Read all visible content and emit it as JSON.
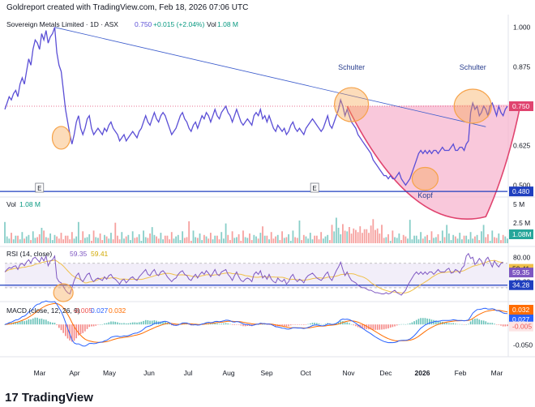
{
  "header": {
    "caption": "Goldreport created with TradingView.com, Feb 18, 2026 07:06 UTC"
  },
  "brand": {
    "name": "TradingView",
    "logo": "17"
  },
  "colors": {
    "price": "#5b4fd6",
    "trend": "#3b5bcc",
    "support": "#1f3fbf",
    "cup_fill": "#f7b6cf",
    "cup_edge": "#e0446f",
    "highlight": "#f6a34a",
    "rsi": "#7e57c2",
    "rsi_ma": "#f0c04a",
    "macd": "#2962ff",
    "signal": "#ff6d00",
    "vol_up": "#26a69a",
    "vol_down": "#ef5350"
  },
  "chart_data": [
    {
      "type": "line",
      "pane": "price",
      "legend": {
        "title": "Sovereign Metals Limited · 1D · ASX",
        "last": "0.750",
        "change": "+0.015 (+2.04%)",
        "vol_label": "Vol",
        "vol_value": "1.08 M"
      },
      "x_axis": {
        "ticks": [
          "Mar",
          "Apr",
          "May",
          "Jun",
          "Jul",
          "Aug",
          "Sep",
          "Oct",
          "Nov",
          "Dec",
          "2026",
          "Feb",
          "Mar"
        ]
      },
      "y_axis": {
        "ticks": [
          "1.000",
          "0.875",
          "0.750",
          "0.625",
          "0.500"
        ],
        "ylim": [
          0.47,
          1.03
        ]
      },
      "series": [
        {
          "values": [
            0.74,
            0.76,
            0.78,
            0.77,
            0.79,
            0.8,
            0.78,
            0.82,
            0.84,
            0.82,
            0.86,
            0.9,
            0.88,
            0.93,
            0.96,
            0.95,
            0.93,
            0.98,
            0.96,
            0.99,
            0.95,
            0.97,
            0.98,
            1.0,
            0.92,
            0.88,
            0.86,
            0.8,
            0.74,
            0.7,
            0.66,
            0.63,
            0.66,
            0.7,
            0.72,
            0.68,
            0.66,
            0.68,
            0.71,
            0.72,
            0.68,
            0.66,
            0.67,
            0.68,
            0.67,
            0.66,
            0.68,
            0.67,
            0.69,
            0.7,
            0.68,
            0.67,
            0.66,
            0.64,
            0.65,
            0.66,
            0.64,
            0.65,
            0.66,
            0.67,
            0.66,
            0.65,
            0.67,
            0.68,
            0.7,
            0.72,
            0.7,
            0.69,
            0.71,
            0.73,
            0.71,
            0.7,
            0.72,
            0.73,
            0.72,
            0.7,
            0.68,
            0.66,
            0.67,
            0.68,
            0.7,
            0.72,
            0.73,
            0.71,
            0.7,
            0.68,
            0.67,
            0.69,
            0.7,
            0.68,
            0.7,
            0.72,
            0.71,
            0.73,
            0.72,
            0.7,
            0.72,
            0.74,
            0.72,
            0.71,
            0.73,
            0.74,
            0.75,
            0.73,
            0.72,
            0.7,
            0.72,
            0.74,
            0.72,
            0.7,
            0.69,
            0.7,
            0.71,
            0.7,
            0.69,
            0.72,
            0.73,
            0.72,
            0.74,
            0.71,
            0.72,
            0.7,
            0.72,
            0.7,
            0.68,
            0.67,
            0.69,
            0.68,
            0.67,
            0.68,
            0.66,
            0.67,
            0.69,
            0.7,
            0.68,
            0.67,
            0.68,
            0.67,
            0.66,
            0.68,
            0.69,
            0.7,
            0.71,
            0.7,
            0.69,
            0.68,
            0.67,
            0.68,
            0.7,
            0.72,
            0.69,
            0.68,
            0.7,
            0.72,
            0.74,
            0.77,
            0.75,
            0.72,
            0.74,
            0.72,
            0.7,
            0.69,
            0.68,
            0.66,
            0.65,
            0.64,
            0.63,
            0.62,
            0.61,
            0.6,
            0.58,
            0.57,
            0.56,
            0.55,
            0.54,
            0.53,
            0.53,
            0.52,
            0.53,
            0.52,
            0.52,
            0.53,
            0.54,
            0.52,
            0.51,
            0.5,
            0.51,
            0.52,
            0.54,
            0.56,
            0.58,
            0.6,
            0.61,
            0.6,
            0.61,
            0.6,
            0.61,
            0.6,
            0.61,
            0.61,
            0.6,
            0.61,
            0.62,
            0.61,
            0.61,
            0.61,
            0.62,
            0.63,
            0.61,
            0.61,
            0.62,
            0.62,
            0.61,
            0.63,
            0.64,
            0.73,
            0.76,
            0.74,
            0.75,
            0.72,
            0.73,
            0.75,
            0.74,
            0.72,
            0.75,
            0.76,
            0.74,
            0.72,
            0.75,
            0.73,
            0.72,
            0.74,
            0.75
          ],
          "ma": {
            "rsi": [
              56,
              60,
              63,
              62,
              65,
              66,
              60,
              68,
              70,
              66,
              72,
              76,
              70,
              78,
              80,
              76,
              72,
              80,
              74,
              82,
              66,
              74,
              76,
              82,
              46,
              40,
              38,
              32,
              26,
              22,
              20,
              30,
              42,
              50,
              54,
              44,
              40,
              46,
              52,
              54,
              44,
              40,
              44,
              46,
              44,
              42,
              48,
              44,
              50,
              52,
              46,
              44,
              40,
              36,
              42,
              44,
              38,
              42,
              46,
              48,
              44,
              42,
              48,
              52,
              56,
              60,
              52,
              50,
              56,
              60,
              52,
              50,
              56,
              58,
              54,
              48,
              44,
              40,
              44,
              46,
              52,
              56,
              58,
              52,
              50,
              44,
              42,
              48,
              52,
              46,
              52,
              56,
              52,
              58,
              54,
              48,
              54,
              60,
              52,
              50,
              56,
              58,
              60,
              52,
              48,
              42,
              50,
              56,
              48,
              42,
              40,
              44,
              46,
              44,
              40,
              52,
              56,
              52,
              58,
              46,
              50,
              44,
              52,
              44,
              40,
              38,
              46,
              42,
              40,
              44,
              36,
              40,
              48,
              52,
              44,
              40,
              44,
              42,
              38,
              46,
              50,
              52,
              54,
              50,
              46,
              44,
              42,
              46,
              52,
              56,
              46,
              42,
              50,
              58,
              64,
              72,
              60,
              50,
              56,
              48,
              42,
              40,
              38,
              34,
              32,
              30,
              30,
              28,
              26,
              26,
              24,
              22,
              22,
              21,
              20,
              20,
              22,
              20,
              21,
              24,
              26,
              22,
              20,
              18,
              22,
              26,
              34,
              40,
              46,
              52,
              56,
              52,
              56,
              52,
              56,
              52,
              56,
              56,
              52,
              56,
              60,
              56,
              56,
              56,
              60,
              62,
              54,
              55,
              60,
              58,
              54,
              62,
              66,
              82,
              86,
              78,
              80,
              68,
              72,
              78,
              74,
              66,
              76,
              80,
              72,
              64,
              74,
              68,
              64,
              70,
              72
            ]
          }
        }
      ],
      "annotations": [
        {
          "kind": "label",
          "text": "Schulter"
        },
        {
          "kind": "label",
          "text": "Schulter"
        },
        {
          "kind": "label",
          "text": "Kopf"
        },
        {
          "kind": "marker",
          "text": "E"
        },
        {
          "kind": "marker",
          "text": "E"
        }
      ],
      "price_labels": {
        "last": "0.750",
        "support": "0.480"
      }
    },
    {
      "type": "bar",
      "pane": "volume",
      "legend": {
        "label": "Vol",
        "value": "1.08 M"
      },
      "y_axis": {
        "ticks": [
          "5 M",
          "2.5 M"
        ]
      },
      "last_label": "1.08M",
      "unit": "M"
    },
    {
      "type": "line",
      "pane": "rsi",
      "legend": {
        "label": "RSI (14, close)",
        "value": "59.35",
        "ma_value": "59.41"
      },
      "y_axis": {
        "ticks": [
          "80.00",
          "40.00"
        ],
        "ylim": [
          10,
          95
        ]
      },
      "price_labels": {
        "ma": "59.41",
        "rsi": "59.35",
        "level": "34.28"
      }
    },
    {
      "type": "bar",
      "pane": "macd",
      "legend": {
        "label": "MACD (close, 12, 26, 9)",
        "hist": "-0.005",
        "macd": "0.027",
        "signal": "0.032"
      },
      "y_axis": {
        "ticks": [
          "-0.050"
        ],
        "ylim": [
          -0.075,
          0.048
        ]
      },
      "price_labels": {
        "signal": "0.032",
        "macd": "0.027",
        "hist": "-0.005"
      }
    }
  ]
}
